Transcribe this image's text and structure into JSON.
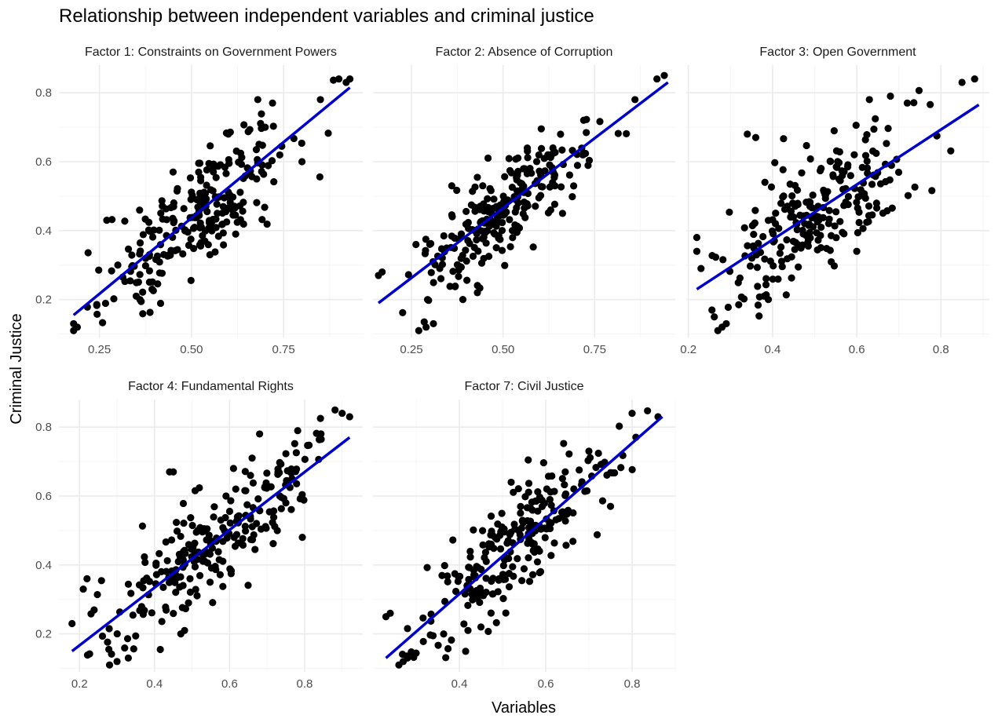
{
  "chart_data": {
    "type": "scatter",
    "title": "Relationship between independent variables and criminal justice",
    "xlabel": "Variables",
    "ylabel": "Criminal Justice",
    "ylim": [
      0.09,
      0.88
    ],
    "y_ticks": [
      0.2,
      0.4,
      0.6,
      0.8
    ],
    "y_tick_labels": [
      "0.2",
      "0.4",
      "0.6",
      "0.8"
    ],
    "grid": true,
    "legend": "none",
    "point_color": "#000000",
    "fit_color": "#0000cc",
    "panels": [
      {
        "name": "Factor 1: Constraints on Government Powers",
        "xlim": [
          0.14,
          0.965
        ],
        "x_ticks": [
          0.25,
          0.5,
          0.75
        ],
        "x_tick_labels": [
          "0.25",
          "0.50",
          "0.75"
        ],
        "fit": {
          "x": [
            0.18,
            0.93
          ],
          "y": [
            0.155,
            0.815
          ]
        },
        "anchor_points": [
          [
            0.18,
            0.11
          ],
          [
            0.18,
            0.13
          ],
          [
            0.19,
            0.12
          ],
          [
            0.35,
            0.21
          ],
          [
            0.36,
            0.2
          ],
          [
            0.27,
            0.43
          ],
          [
            0.3,
            0.3
          ],
          [
            0.45,
            0.57
          ],
          [
            0.55,
            0.33
          ],
          [
            0.68,
            0.78
          ],
          [
            0.72,
            0.77
          ],
          [
            0.8,
            0.6
          ],
          [
            0.9,
            0.84
          ],
          [
            0.92,
            0.83
          ],
          [
            0.93,
            0.84
          ],
          [
            0.6,
            0.68
          ],
          [
            0.62,
            0.39
          ],
          [
            0.85,
            0.78
          ]
        ],
        "cluster_center": [
          0.52,
          0.44
        ],
        "spread": [
          0.13,
          0.08
        ],
        "n_points": 240
      },
      {
        "name": "Factor 2: Absence of Corruption",
        "xlim": [
          0.145,
          0.97
        ],
        "x_ticks": [
          0.25,
          0.5,
          0.75
        ],
        "x_tick_labels": [
          "0.25",
          "0.50",
          "0.75"
        ],
        "fit": {
          "x": [
            0.16,
            0.95
          ],
          "y": [
            0.19,
            0.83
          ]
        },
        "anchor_points": [
          [
            0.16,
            0.27
          ],
          [
            0.17,
            0.28
          ],
          [
            0.27,
            0.11
          ],
          [
            0.29,
            0.12
          ],
          [
            0.31,
            0.13
          ],
          [
            0.3,
            0.36
          ],
          [
            0.36,
            0.53
          ],
          [
            0.43,
            0.22
          ],
          [
            0.63,
            0.46
          ],
          [
            0.92,
            0.84
          ],
          [
            0.94,
            0.85
          ],
          [
            0.86,
            0.78
          ],
          [
            0.72,
            0.72
          ]
        ],
        "cluster_center": [
          0.5,
          0.45
        ],
        "spread": [
          0.12,
          0.07
        ],
        "n_points": 240
      },
      {
        "name": "Factor 3: Open Government",
        "xlim": [
          0.195,
          0.915
        ],
        "x_ticks": [
          0.2,
          0.4,
          0.6,
          0.8
        ],
        "x_tick_labels": [
          "0.2",
          "0.4",
          "0.6",
          "0.8"
        ],
        "fit": {
          "x": [
            0.22,
            0.89
          ],
          "y": [
            0.23,
            0.765
          ]
        },
        "anchor_points": [
          [
            0.22,
            0.34
          ],
          [
            0.22,
            0.38
          ],
          [
            0.23,
            0.29
          ],
          [
            0.27,
            0.11
          ],
          [
            0.28,
            0.12
          ],
          [
            0.29,
            0.13
          ],
          [
            0.34,
            0.68
          ],
          [
            0.36,
            0.67
          ],
          [
            0.38,
            0.21
          ],
          [
            0.39,
            0.2
          ],
          [
            0.63,
            0.78
          ],
          [
            0.68,
            0.79
          ],
          [
            0.72,
            0.77
          ],
          [
            0.85,
            0.83
          ],
          [
            0.88,
            0.84
          ],
          [
            0.6,
            0.34
          ]
        ],
        "cluster_center": [
          0.5,
          0.45
        ],
        "spread": [
          0.11,
          0.09
        ],
        "n_points": 240
      },
      {
        "name": "Factor 4: Fundamental Rights",
        "xlim": [
          0.145,
          0.955
        ],
        "x_ticks": [
          0.2,
          0.4,
          0.6,
          0.8
        ],
        "x_tick_labels": [
          "0.2",
          "0.4",
          "0.6",
          "0.8"
        ],
        "fit": {
          "x": [
            0.18,
            0.92
          ],
          "y": [
            0.15,
            0.77
          ]
        },
        "anchor_points": [
          [
            0.18,
            0.23
          ],
          [
            0.21,
            0.33
          ],
          [
            0.22,
            0.36
          ],
          [
            0.28,
            0.11
          ],
          [
            0.3,
            0.12
          ],
          [
            0.33,
            0.13
          ],
          [
            0.44,
            0.67
          ],
          [
            0.45,
            0.67
          ],
          [
            0.47,
            0.2
          ],
          [
            0.48,
            0.21
          ],
          [
            0.68,
            0.78
          ],
          [
            0.66,
            0.71
          ],
          [
            0.9,
            0.84
          ],
          [
            0.92,
            0.83
          ],
          [
            0.75,
            0.58
          ]
        ],
        "cluster_center": [
          0.55,
          0.45
        ],
        "spread": [
          0.14,
          0.08
        ],
        "n_points": 240
      },
      {
        "name": "Factor 7: Civil Justice",
        "xlim": [
          0.2,
          0.9
        ],
        "x_ticks": [
          0.4,
          0.6,
          0.8
        ],
        "x_tick_labels": [
          "0.4",
          "0.6",
          "0.8"
        ],
        "fit": {
          "x": [
            0.23,
            0.87
          ],
          "y": [
            0.13,
            0.83
          ]
        },
        "anchor_points": [
          [
            0.23,
            0.25
          ],
          [
            0.24,
            0.26
          ],
          [
            0.26,
            0.11
          ],
          [
            0.27,
            0.12
          ],
          [
            0.28,
            0.13
          ],
          [
            0.42,
            0.21
          ],
          [
            0.45,
            0.22
          ],
          [
            0.52,
            0.64
          ],
          [
            0.8,
            0.84
          ],
          [
            0.86,
            0.83
          ],
          [
            0.75,
            0.57
          ],
          [
            0.7,
            0.73
          ]
        ],
        "cluster_center": [
          0.53,
          0.44
        ],
        "spread": [
          0.11,
          0.08
        ],
        "n_points": 240
      }
    ]
  }
}
